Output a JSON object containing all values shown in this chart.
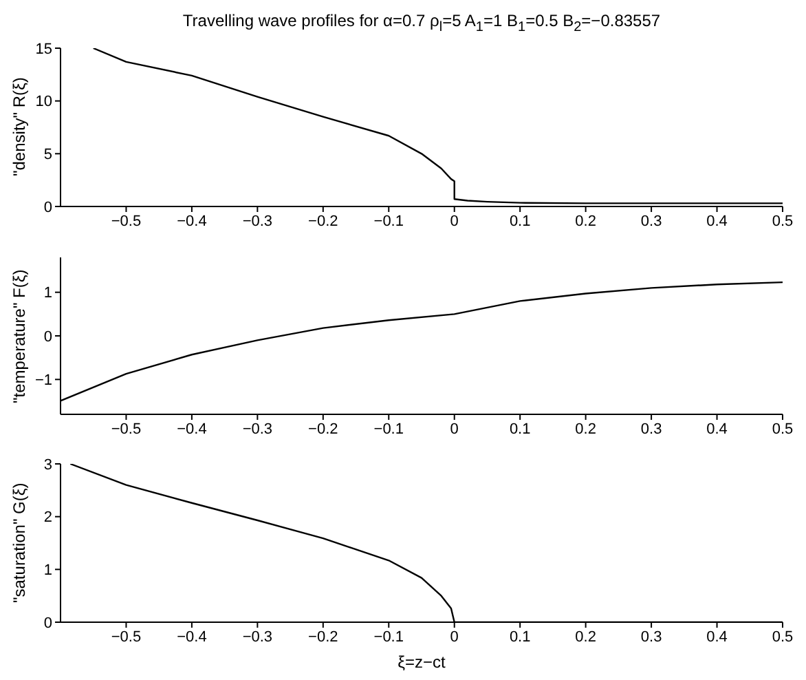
{
  "chart_data": [
    {
      "type": "line",
      "title": "Travelling wave profiles for α=0.7 ρ$_{l}$=5 A$_{1}$=1 B$_{1}$=0.5   B$_{2}$=−0.83557",
      "ylabel": "\"density\" R(ξ)",
      "x": [
        -0.55,
        -0.5,
        -0.4,
        -0.3,
        -0.2,
        -0.1,
        -0.05,
        -0.02,
        -0.005,
        0,
        0,
        0.02,
        0.05,
        0.1,
        0.2,
        0.3,
        0.4,
        0.5
      ],
      "series": [
        {
          "color": "#000000",
          "values": [
            15,
            13.7,
            12.4,
            10.4,
            8.5,
            6.7,
            5.0,
            3.6,
            2.6,
            2.4,
            0.7,
            0.55,
            0.45,
            0.35,
            0.3,
            0.3,
            0.3,
            0.3
          ]
        }
      ],
      "xlim": [
        -0.6,
        0.5
      ],
      "xticks": [
        -0.5,
        -0.4,
        -0.3,
        -0.2,
        -0.1,
        0,
        0.1,
        0.2,
        0.3,
        0.4,
        0.5
      ],
      "ylim": [
        0,
        15
      ],
      "yticks": [
        0,
        5,
        10,
        15
      ],
      "marker": "none",
      "grid": false,
      "legend": false
    },
    {
      "type": "line",
      "ylabel": "\"temperature\" F(ξ)",
      "x": [
        -0.6,
        -0.5,
        -0.4,
        -0.3,
        -0.2,
        -0.1,
        0,
        0.1,
        0.2,
        0.3,
        0.4,
        0.5
      ],
      "series": [
        {
          "color": "#000000",
          "values": [
            -1.49,
            -0.87,
            -0.43,
            -0.1,
            0.18,
            0.36,
            0.5,
            0.8,
            0.97,
            1.1,
            1.18,
            1.23
          ]
        }
      ],
      "xlim": [
        -0.6,
        0.5
      ],
      "xticks": [
        -0.5,
        -0.4,
        -0.3,
        -0.2,
        -0.1,
        0,
        0.1,
        0.2,
        0.3,
        0.4,
        0.5
      ],
      "ylim": [
        -1.8,
        1.8
      ],
      "yticks": [
        -1,
        0,
        1
      ],
      "marker": "none",
      "grid": false,
      "legend": false
    },
    {
      "type": "line",
      "ylabel": "\"saturation\" G(ξ)",
      "xlabel": "ξ=z−ct",
      "x": [
        -0.585,
        -0.5,
        -0.4,
        -0.3,
        -0.2,
        -0.1,
        -0.05,
        -0.02,
        -0.005,
        0,
        0.1,
        0.2,
        0.3,
        0.4,
        0.5
      ],
      "series": [
        {
          "color": "#000000",
          "values": [
            3,
            2.6,
            2.26,
            1.93,
            1.59,
            1.17,
            0.84,
            0.5,
            0.26,
            0,
            0,
            0,
            0,
            0,
            0
          ]
        }
      ],
      "xlim": [
        -0.6,
        0.5
      ],
      "xticks": [
        -0.5,
        -0.4,
        -0.3,
        -0.2,
        -0.1,
        0,
        0.1,
        0.2,
        0.3,
        0.4,
        0.5
      ],
      "ylim": [
        0,
        3
      ],
      "yticks": [
        0,
        1,
        2,
        3
      ],
      "marker": "none",
      "grid": false,
      "legend": false
    }
  ]
}
